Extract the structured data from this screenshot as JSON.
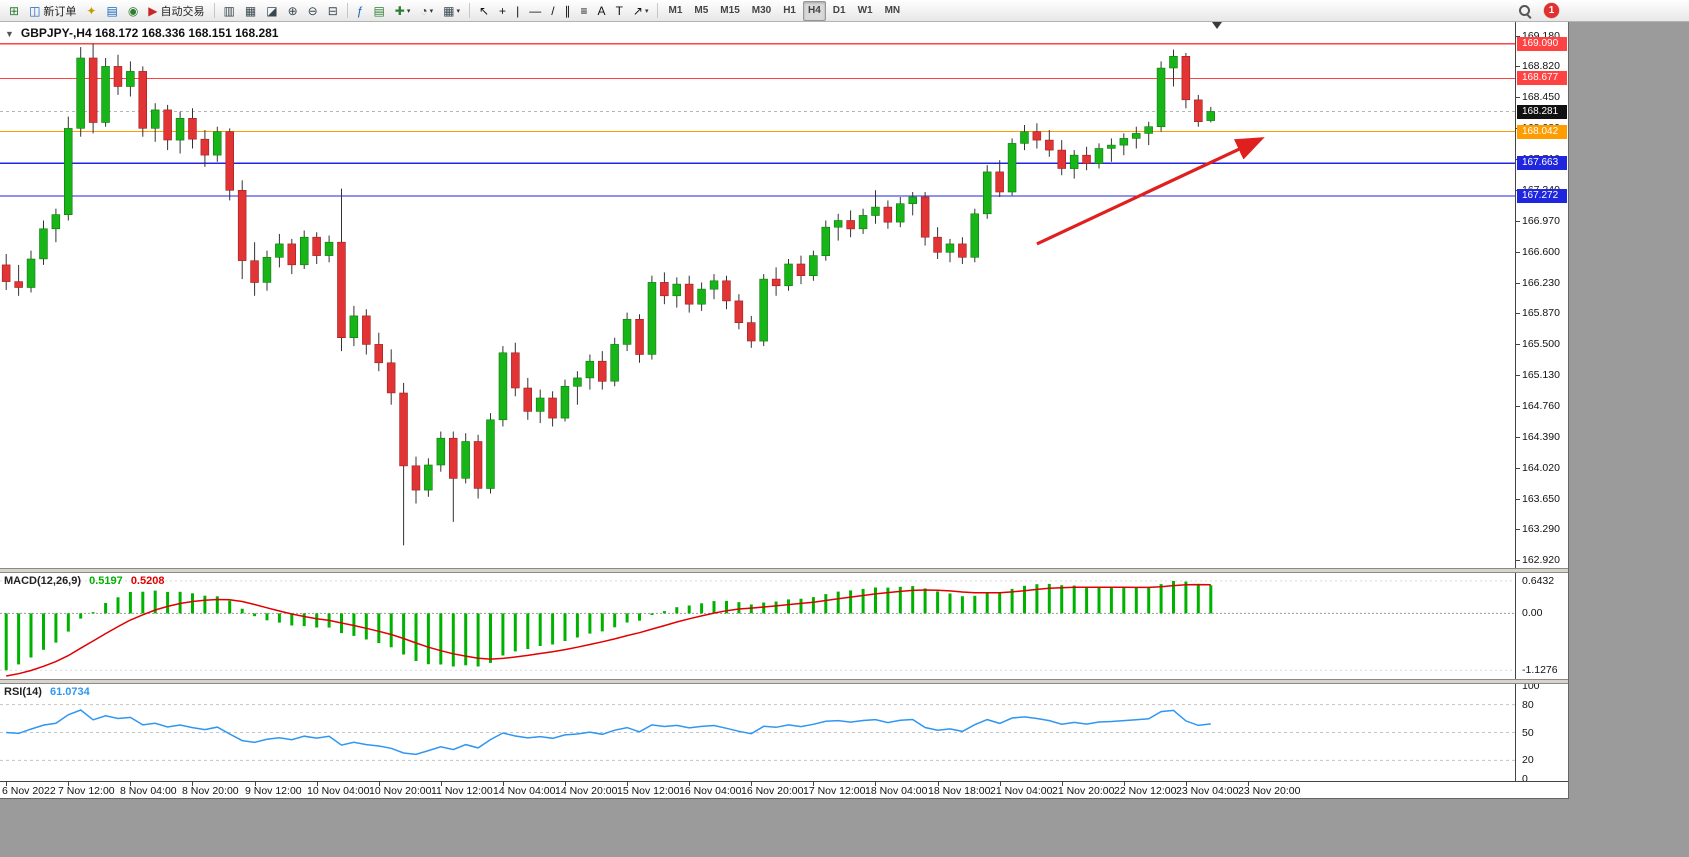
{
  "toolbar": {
    "groups": [
      {
        "items": [
          {
            "name": "new-chart",
            "type": "icon",
            "glyph": "⊞",
            "color": "#2e7d32"
          },
          {
            "name": "new-order",
            "type": "labeled",
            "glyph": "◫",
            "color": "#1565c0",
            "label": "新订单"
          },
          {
            "name": "metaeditor",
            "type": "icon",
            "glyph": "✦",
            "color": "#c79a00"
          },
          {
            "name": "profiles",
            "type": "icon",
            "glyph": "▤",
            "color": "#1565c0"
          },
          {
            "name": "data-window",
            "type": "icon",
            "glyph": "◉",
            "color": "#2e7d32"
          },
          {
            "name": "autotrading",
            "type": "labeled",
            "glyph": "▶",
            "color": "#c62828",
            "label": "自动交易"
          }
        ]
      },
      {
        "items": [
          {
            "name": "bar-chart",
            "type": "icon",
            "glyph": "▥",
            "color": "#37474f"
          },
          {
            "name": "candlestick-chart",
            "type": "icon",
            "glyph": "▦",
            "color": "#37474f"
          },
          {
            "name": "line-chart",
            "type": "icon",
            "glyph": "◪",
            "color": "#37474f"
          },
          {
            "name": "zoom-in",
            "type": "icon",
            "glyph": "⊕",
            "color": "#37474f"
          },
          {
            "name": "zoom-out",
            "type": "icon",
            "glyph": "⊖",
            "color": "#37474f"
          },
          {
            "name": "tile-windows",
            "type": "icon",
            "glyph": "⊟",
            "color": "#37474f"
          }
        ]
      },
      {
        "items": [
          {
            "name": "indicators",
            "type": "icon",
            "glyph": "ƒ",
            "color": "#1565c0"
          },
          {
            "name": "indicator-list",
            "type": "icon",
            "glyph": "▤",
            "color": "#2e7d32"
          },
          {
            "name": "add-indicator",
            "type": "dropdown",
            "glyph": "✚",
            "color": "#2e7d32"
          },
          {
            "name": "periods-menu",
            "type": "dropdown",
            "glyph": "◔",
            "color": "#37474f"
          },
          {
            "name": "templates-menu",
            "type": "dropdown",
            "glyph": "▦",
            "color": "#37474f"
          }
        ]
      },
      {
        "items": [
          {
            "name": "cursor",
            "type": "icon",
            "glyph": "↖",
            "color": "#111111"
          },
          {
            "name": "crosshair",
            "type": "icon",
            "glyph": "+",
            "color": "#111111"
          },
          {
            "name": "vertical-line",
            "type": "icon",
            "glyph": "|",
            "color": "#111111"
          },
          {
            "name": "horizontal-line",
            "type": "icon",
            "glyph": "—",
            "color": "#111111"
          },
          {
            "name": "trendline",
            "type": "icon",
            "glyph": "/",
            "color": "#111111"
          },
          {
            "name": "equidistant-channel",
            "type": "icon",
            "glyph": "∥",
            "color": "#111111"
          },
          {
            "name": "fibonacci",
            "type": "icon",
            "glyph": "≡",
            "color": "#111111"
          },
          {
            "name": "text",
            "type": "icon",
            "glyph": "A",
            "color": "#111111"
          },
          {
            "name": "text-label",
            "type": "icon",
            "glyph": "T",
            "color": "#111111"
          },
          {
            "name": "arrows-menu",
            "type": "dropdown",
            "glyph": "↗",
            "color": "#111111"
          }
        ]
      }
    ],
    "timeframes": [
      "M1",
      "M5",
      "M15",
      "M30",
      "H1",
      "H4",
      "D1",
      "W1",
      "MN"
    ],
    "active_timeframe": "H4",
    "notification_count": "1"
  },
  "chart": {
    "one_click_glyph": "▼",
    "title": "GBPJPY-,H4",
    "ohlc": "168.172 168.336 168.151 168.281"
  },
  "chart_data": {
    "type": "candlestick",
    "symbol": "GBPJPY-",
    "timeframe": "H4",
    "ohlc_display": {
      "open": "168.172",
      "high": "168.336",
      "low": "168.151",
      "close": "168.281"
    },
    "colors": {
      "bull": "#17b517",
      "bear": "#e23434",
      "bull_edge": "#0e7a0e",
      "bear_edge": "#9c1f1f",
      "wick": "#333333",
      "hist": "#00b200",
      "signal": "#e00000",
      "rsi_line": "#2f96f3"
    },
    "price_axis": {
      "max": 169.35,
      "min": 162.83,
      "ticks": [
        "169.180",
        "168.820",
        "168.450",
        "168.080",
        "167.710",
        "167.340",
        "166.970",
        "166.600",
        "166.230",
        "165.870",
        "165.500",
        "165.130",
        "164.760",
        "164.390",
        "164.020",
        "163.650",
        "163.290",
        "162.920"
      ]
    },
    "time_labels": [
      "6 Nov 2022",
      "7 Nov 12:00",
      "8 Nov 04:00",
      "8 Nov 20:00",
      "9 Nov 12:00",
      "10 Nov 04:00",
      "10 Nov 20:00",
      "11 Nov 12:00",
      "14 Nov 04:00",
      "14 Nov 20:00",
      "15 Nov 12:00",
      "16 Nov 04:00",
      "16 Nov 20:00",
      "17 Nov 12:00",
      "18 Nov 04:00",
      "18 Nov 18:00",
      "21 Nov 04:00",
      "21 Nov 20:00",
      "22 Nov 12:00",
      "23 Nov 04:00",
      "23 Nov 20:00"
    ],
    "hlines": [
      {
        "value": 169.09,
        "label": "169.090",
        "color": "#ff4242"
      },
      {
        "value": 168.677,
        "label": "168.677",
        "color": "#ff4242"
      },
      {
        "value": 168.042,
        "label": "168.042",
        "color": "#ff9c00"
      },
      {
        "value": 167.663,
        "label": "167.663",
        "color": "#2026dd"
      },
      {
        "value": 167.272,
        "label": "167.272",
        "color": "#2026dd"
      }
    ],
    "current_price": {
      "value": 168.281,
      "label": "168.281",
      "tag_color": "#111111"
    },
    "trend_arrow": {
      "from_index": 83,
      "from_price": 166.7,
      "to_index": 101,
      "to_price": 167.95,
      "color": "#e01f1f"
    },
    "shift_marker_index": 97.5,
    "candles": [
      [
        166.45,
        166.58,
        166.15,
        166.25
      ],
      [
        166.25,
        166.45,
        166.08,
        166.18
      ],
      [
        166.18,
        166.62,
        166.12,
        166.52
      ],
      [
        166.52,
        166.98,
        166.45,
        166.88
      ],
      [
        166.88,
        167.12,
        166.72,
        167.05
      ],
      [
        167.05,
        168.22,
        166.98,
        168.08
      ],
      [
        168.08,
        169.05,
        167.98,
        168.92
      ],
      [
        168.92,
        169.09,
        168.02,
        168.15
      ],
      [
        168.15,
        168.92,
        168.1,
        168.82
      ],
      [
        168.82,
        168.96,
        168.48,
        168.58
      ],
      [
        168.58,
        168.88,
        168.46,
        168.76
      ],
      [
        168.76,
        168.82,
        167.98,
        168.08
      ],
      [
        168.08,
        168.38,
        167.92,
        168.3
      ],
      [
        168.3,
        168.36,
        167.82,
        167.94
      ],
      [
        167.94,
        168.28,
        167.78,
        168.2
      ],
      [
        168.2,
        168.32,
        167.84,
        167.95
      ],
      [
        167.95,
        168.06,
        167.62,
        167.76
      ],
      [
        167.76,
        168.1,
        167.68,
        168.04
      ],
      [
        168.04,
        168.08,
        167.22,
        167.34
      ],
      [
        167.34,
        167.46,
        166.28,
        166.5
      ],
      [
        166.5,
        166.72,
        166.08,
        166.24
      ],
      [
        166.24,
        166.62,
        166.14,
        166.54
      ],
      [
        166.54,
        166.82,
        166.42,
        166.7
      ],
      [
        166.7,
        166.76,
        166.34,
        166.45
      ],
      [
        166.45,
        166.86,
        166.4,
        166.78
      ],
      [
        166.78,
        166.84,
        166.46,
        166.56
      ],
      [
        166.56,
        166.8,
        166.48,
        166.72
      ],
      [
        166.72,
        167.36,
        165.42,
        165.58
      ],
      [
        165.58,
        165.96,
        165.48,
        165.84
      ],
      [
        165.84,
        165.92,
        165.38,
        165.5
      ],
      [
        165.5,
        165.64,
        165.18,
        165.28
      ],
      [
        165.28,
        165.44,
        164.78,
        164.92
      ],
      [
        164.92,
        165.04,
        163.1,
        164.05
      ],
      [
        164.05,
        164.16,
        163.6,
        163.76
      ],
      [
        163.76,
        164.14,
        163.68,
        164.06
      ],
      [
        164.06,
        164.46,
        163.98,
        164.38
      ],
      [
        164.38,
        164.46,
        163.38,
        163.9
      ],
      [
        163.9,
        164.44,
        163.84,
        164.34
      ],
      [
        164.34,
        164.42,
        163.66,
        163.78
      ],
      [
        163.78,
        164.68,
        163.72,
        164.6
      ],
      [
        164.6,
        165.48,
        164.52,
        165.4
      ],
      [
        165.4,
        165.52,
        164.88,
        164.98
      ],
      [
        164.98,
        165.1,
        164.6,
        164.7
      ],
      [
        164.7,
        164.96,
        164.56,
        164.86
      ],
      [
        164.86,
        164.94,
        164.52,
        164.62
      ],
      [
        164.62,
        165.08,
        164.58,
        165.0
      ],
      [
        165.0,
        165.18,
        164.78,
        165.1
      ],
      [
        165.1,
        165.38,
        164.96,
        165.3
      ],
      [
        165.3,
        165.42,
        164.96,
        165.06
      ],
      [
        165.06,
        165.58,
        165.0,
        165.5
      ],
      [
        165.5,
        165.88,
        165.42,
        165.8
      ],
      [
        165.8,
        165.86,
        165.28,
        165.38
      ],
      [
        165.38,
        166.32,
        165.32,
        166.24
      ],
      [
        166.24,
        166.36,
        165.98,
        166.08
      ],
      [
        166.08,
        166.3,
        165.94,
        166.22
      ],
      [
        166.22,
        166.32,
        165.88,
        165.98
      ],
      [
        165.98,
        166.24,
        165.9,
        166.16
      ],
      [
        166.16,
        166.34,
        166.04,
        166.26
      ],
      [
        166.26,
        166.32,
        165.92,
        166.02
      ],
      [
        166.02,
        166.1,
        165.68,
        165.76
      ],
      [
        165.76,
        165.84,
        165.46,
        165.54
      ],
      [
        165.54,
        166.34,
        165.48,
        166.28
      ],
      [
        166.28,
        166.42,
        166.08,
        166.2
      ],
      [
        166.2,
        166.52,
        166.14,
        166.46
      ],
      [
        166.46,
        166.56,
        166.22,
        166.32
      ],
      [
        166.32,
        166.62,
        166.26,
        166.56
      ],
      [
        166.56,
        166.98,
        166.5,
        166.9
      ],
      [
        166.9,
        167.06,
        166.74,
        166.98
      ],
      [
        166.98,
        167.1,
        166.78,
        166.88
      ],
      [
        166.88,
        167.12,
        166.82,
        167.04
      ],
      [
        167.04,
        167.34,
        166.94,
        167.14
      ],
      [
        167.14,
        167.22,
        166.88,
        166.96
      ],
      [
        166.96,
        167.26,
        166.9,
        167.18
      ],
      [
        167.18,
        167.32,
        167.04,
        167.26
      ],
      [
        167.26,
        167.32,
        166.68,
        166.78
      ],
      [
        166.78,
        166.9,
        166.52,
        166.6
      ],
      [
        166.6,
        166.76,
        166.48,
        166.7
      ],
      [
        166.7,
        166.78,
        166.46,
        166.54
      ],
      [
        166.54,
        167.12,
        166.48,
        167.06
      ],
      [
        167.06,
        167.64,
        167.0,
        167.56
      ],
      [
        167.56,
        167.7,
        167.26,
        167.32
      ],
      [
        167.32,
        167.96,
        167.28,
        167.9
      ],
      [
        167.9,
        168.12,
        167.82,
        168.04
      ],
      [
        168.04,
        168.14,
        167.84,
        167.94
      ],
      [
        167.94,
        168.06,
        167.74,
        167.82
      ],
      [
        167.82,
        167.94,
        167.52,
        167.6
      ],
      [
        167.6,
        167.82,
        167.48,
        167.76
      ],
      [
        167.76,
        167.86,
        167.58,
        167.66
      ],
      [
        167.66,
        167.9,
        167.6,
        167.84
      ],
      [
        167.84,
        167.96,
        167.68,
        167.88
      ],
      [
        167.88,
        168.02,
        167.76,
        167.96
      ],
      [
        167.96,
        168.1,
        167.84,
        168.02
      ],
      [
        168.02,
        168.16,
        167.88,
        168.1
      ],
      [
        168.1,
        168.88,
        168.04,
        168.8
      ],
      [
        168.8,
        169.02,
        168.58,
        168.94
      ],
      [
        168.94,
        168.98,
        168.32,
        168.42
      ],
      [
        168.42,
        168.48,
        168.1,
        168.16
      ],
      [
        168.172,
        168.336,
        168.151,
        168.281
      ]
    ],
    "macd": {
      "title": "MACD(12,26,9)",
      "value_main": "0.5197",
      "value_signal": "0.5208",
      "axis_labels": [
        "0.6432",
        "0.00",
        "-1.1276"
      ],
      "pos_extreme": 0.6432,
      "neg_extreme": -1.1276
    },
    "rsi": {
      "title": "RSI(14)",
      "value": "61.0734",
      "axis_labels": [
        "100",
        "80",
        "50",
        "20",
        "0"
      ],
      "levels": [
        80,
        50,
        20
      ]
    }
  }
}
